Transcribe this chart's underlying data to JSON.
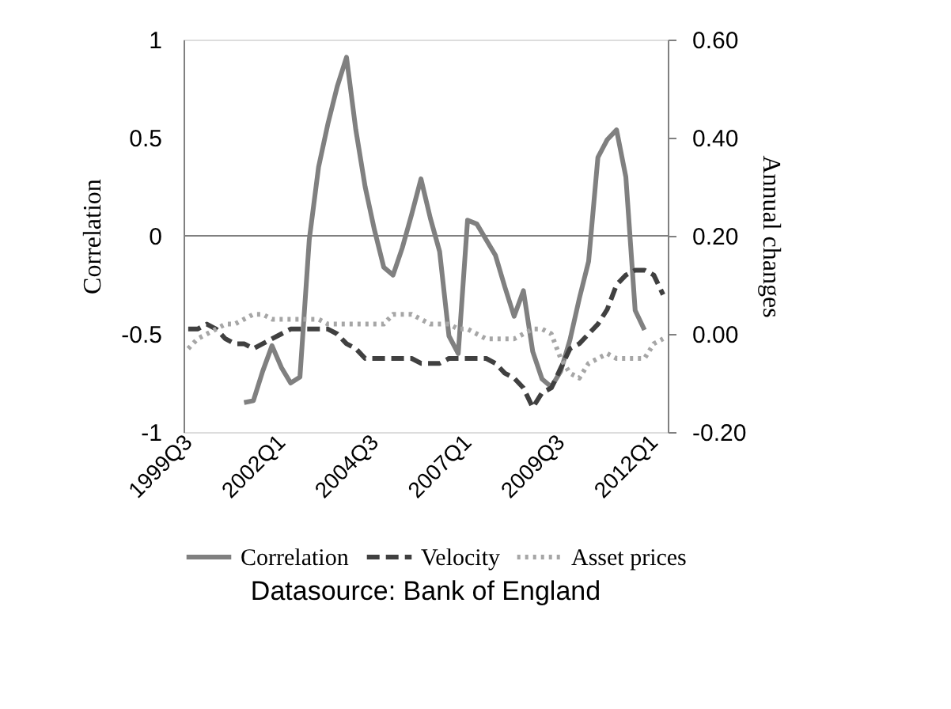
{
  "chart_data": {
    "type": "line",
    "categories": [
      "1999Q3",
      null,
      null,
      null,
      null,
      null,
      null,
      null,
      null,
      null,
      "2002Q1",
      null,
      null,
      null,
      null,
      null,
      null,
      null,
      null,
      null,
      "2004Q3",
      null,
      null,
      null,
      null,
      null,
      null,
      null,
      null,
      null,
      "2007Q1",
      null,
      null,
      null,
      null,
      null,
      null,
      null,
      null,
      null,
      "2009Q3",
      null,
      null,
      null,
      null,
      null,
      null,
      null,
      null,
      null,
      "2012Q1",
      null
    ],
    "series": [
      {
        "name": "Correlation",
        "color": "#808080",
        "line_style": "solid",
        "values": [
          null,
          null,
          null,
          null,
          null,
          null,
          -0.85,
          -0.84,
          -0.69,
          -0.56,
          -0.67,
          -0.75,
          -0.72,
          -0.02,
          0.35,
          0.57,
          0.76,
          0.91,
          0.54,
          0.25,
          0.03,
          -0.16,
          -0.2,
          -0.06,
          0.11,
          0.29,
          0.09,
          -0.08,
          -0.51,
          -0.6,
          0.08,
          0.06,
          -0.02,
          -0.1,
          -0.26,
          -0.41,
          -0.28,
          -0.59,
          -0.73,
          -0.77,
          -0.69,
          -0.53,
          -0.32,
          -0.13,
          0.4,
          0.49,
          0.54,
          0.3,
          -0.38,
          -0.48,
          null,
          null
        ]
      },
      {
        "name": "Velocity",
        "color": "#404040",
        "line_style": "dashed",
        "axis": "y2",
        "values": [
          0.01,
          0.01,
          0.02,
          0.01,
          -0.01,
          -0.02,
          -0.02,
          -0.03,
          -0.02,
          -0.01,
          0.0,
          0.01,
          0.01,
          0.01,
          0.01,
          0.01,
          0.0,
          -0.02,
          -0.03,
          -0.05,
          -0.05,
          -0.05,
          -0.05,
          -0.05,
          -0.05,
          -0.06,
          -0.06,
          -0.06,
          -0.05,
          -0.05,
          -0.05,
          -0.05,
          -0.05,
          -0.06,
          -0.08,
          -0.09,
          -0.11,
          -0.15,
          -0.12,
          -0.11,
          -0.07,
          -0.03,
          -0.02,
          0.0,
          0.02,
          0.05,
          0.1,
          0.12,
          0.13,
          0.13,
          0.12,
          0.08
        ]
      },
      {
        "name": "Asset prices",
        "color": "#a6a6a6",
        "line_style": "dotted",
        "axis": "y2",
        "values": [
          -0.03,
          -0.01,
          0.0,
          0.01,
          0.02,
          0.02,
          0.03,
          0.04,
          0.04,
          0.03,
          0.03,
          0.03,
          0.03,
          0.03,
          0.03,
          0.02,
          0.02,
          0.02,
          0.02,
          0.02,
          0.02,
          0.02,
          0.04,
          0.04,
          0.04,
          0.03,
          0.02,
          0.02,
          0.02,
          0.01,
          0.01,
          0.0,
          -0.01,
          -0.01,
          -0.01,
          -0.01,
          0.0,
          0.01,
          0.01,
          0.0,
          -0.05,
          -0.08,
          -0.09,
          -0.06,
          -0.05,
          -0.04,
          -0.05,
          -0.05,
          -0.05,
          -0.05,
          -0.02,
          -0.01
        ]
      }
    ],
    "ylabel": "Correlation",
    "y2label": "Annual  changes",
    "ylim": [
      -1,
      1
    ],
    "yticks": [
      -1,
      -0.5,
      0,
      0.5,
      1
    ],
    "y2lim": [
      -0.2,
      0.6
    ],
    "y2ticks": [
      {
        "value": -0.2,
        "label": "-0.20"
      },
      {
        "value": 0,
        "label": "0.00"
      },
      {
        "value": 0.2,
        "label": "0.20"
      },
      {
        "value": 0.4,
        "label": "0.40"
      },
      {
        "value": 0.6,
        "label": "0.60"
      }
    ],
    "ref_lines": [
      {
        "axis": "y",
        "value": 0,
        "color": "#808080"
      }
    ],
    "legend": "bottom",
    "grid": false,
    "annotations": [
      "Datasource: Bank of England"
    ]
  }
}
